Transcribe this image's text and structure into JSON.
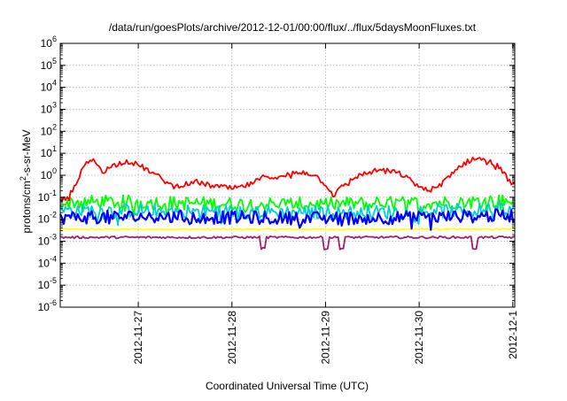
{
  "chart_data": {
    "type": "line",
    "title": "/data/run/goesPlots/archive/2012-12-01/00:00/flux/../flux/5daysMoonFluxes.txt",
    "xlabel": "Coordinated Universal Time (UTC)",
    "ylabel": {
      "prefix": "protons/cm",
      "sup": "2",
      "suffix": "-s-sr-MeV"
    },
    "y_scale": "log",
    "ylim": [
      1e-06,
      1000000.0
    ],
    "y_ticks": [
      {
        "exp": "-6",
        "value": -6
      },
      {
        "exp": "-5",
        "value": -5
      },
      {
        "exp": "-4",
        "value": -4
      },
      {
        "exp": "-3",
        "value": -3
      },
      {
        "exp": "-2",
        "value": -2
      },
      {
        "exp": "-1",
        "value": -1
      },
      {
        "exp": "0",
        "value": 0
      },
      {
        "exp": "1",
        "value": 1
      },
      {
        "exp": "2",
        "value": 2
      },
      {
        "exp": "3",
        "value": 3
      },
      {
        "exp": "4",
        "value": 4
      },
      {
        "exp": "5",
        "value": 5
      },
      {
        "exp": "6",
        "value": 6
      }
    ],
    "x_ticks": [
      "2012-11-27",
      "2012-11-28",
      "2012-11-29",
      "2012-11-30",
      "2012-12-1"
    ],
    "x_range": [
      "2012-11-26 04:00",
      "2012-12-01 00:30"
    ],
    "grid": true,
    "series": [
      {
        "color": "#ff0000",
        "x": [
          "2012-11-26 04:00",
          "2012-11-26 06:00",
          "2012-11-26 08:00",
          "2012-11-26 10:00",
          "2012-11-26 12:00",
          "2012-11-26 13:00",
          "2012-11-26 15:00",
          "2012-11-26 18:00",
          "2012-11-26 21:00",
          "2012-11-27 00:00",
          "2012-11-27 03:00",
          "2012-11-27 06:00",
          "2012-11-27 09:00",
          "2012-11-27 12:00",
          "2012-11-27 15:00",
          "2012-11-27 18:00",
          "2012-11-27 21:00",
          "2012-11-28 00:00",
          "2012-11-28 03:00",
          "2012-11-28 06:00",
          "2012-11-28 09:00",
          "2012-11-28 12:00",
          "2012-11-28 15:00",
          "2012-11-28 18:00",
          "2012-11-28 21:00",
          "2012-11-29 00:00",
          "2012-11-29 02:00",
          "2012-11-29 05:00",
          "2012-11-29 08:00",
          "2012-11-29 11:00",
          "2012-11-29 14:00",
          "2012-11-29 17:00",
          "2012-11-29 20:00",
          "2012-11-29 23:00",
          "2012-11-30 02:00",
          "2012-11-30 05:00",
          "2012-11-30 08:00",
          "2012-11-30 11:00",
          "2012-11-30 14:00",
          "2012-11-30 17:00",
          "2012-11-30 20:00",
          "2012-11-30 22:00",
          "2012-12-01 00:00"
        ],
        "y": [
          0.06,
          0.12,
          0.35,
          2.5,
          5.0,
          4.0,
          1.5,
          3.0,
          4.5,
          3.0,
          1.5,
          0.7,
          0.3,
          0.4,
          0.5,
          0.35,
          0.3,
          0.25,
          0.3,
          0.5,
          1.0,
          0.7,
          1.2,
          1.4,
          1.1,
          0.4,
          0.12,
          0.4,
          0.9,
          1.3,
          1.8,
          1.5,
          1.0,
          0.4,
          0.2,
          0.3,
          1.2,
          3.0,
          6.0,
          5.0,
          3.0,
          1.0,
          0.4
        ]
      },
      {
        "color": "#00ff00",
        "x": [
          "2012-11-26 04:00",
          "2012-11-27 00:00",
          "2012-11-28 00:00",
          "2012-11-29 00:00",
          "2012-11-30 00:00",
          "2012-12-01 00:00"
        ],
        "y": [
          0.06,
          0.06,
          0.05,
          0.05,
          0.055,
          0.07
        ]
      },
      {
        "color": "#00cfcf",
        "x": [
          "2012-11-26 04:00",
          "2012-11-27 00:00",
          "2012-11-28 00:00",
          "2012-11-29 00:00",
          "2012-11-30 00:00",
          "2012-12-01 00:00"
        ],
        "y": [
          0.025,
          0.025,
          0.022,
          0.02,
          0.022,
          0.03
        ]
      },
      {
        "color": "#0000ff",
        "x": [
          "2012-11-26 04:00",
          "2012-11-27 00:00",
          "2012-11-28 00:00",
          "2012-11-29 00:00",
          "2012-11-30 00:00",
          "2012-12-01 00:00"
        ],
        "y": [
          0.012,
          0.013,
          0.012,
          0.011,
          0.012,
          0.015
        ]
      },
      {
        "color": "#ffff00",
        "x": [
          "2012-11-26 04:00",
          "2012-11-27 00:00",
          "2012-11-28 00:00",
          "2012-11-29 00:00",
          "2012-11-30 00:00",
          "2012-12-01 00:00"
        ],
        "y": [
          0.0035,
          0.0035,
          0.0035,
          0.0035,
          0.0035,
          0.0035
        ]
      },
      {
        "color": "#a0206e",
        "x": [
          "2012-11-26 04:00",
          "2012-11-27 00:00",
          "2012-11-28 00:00",
          "2012-11-29 00:00",
          "2012-11-30 00:00",
          "2012-12-01 00:00"
        ],
        "y": [
          0.0015,
          0.0015,
          0.0015,
          0.0015,
          0.0015,
          0.0015
        ]
      }
    ]
  }
}
